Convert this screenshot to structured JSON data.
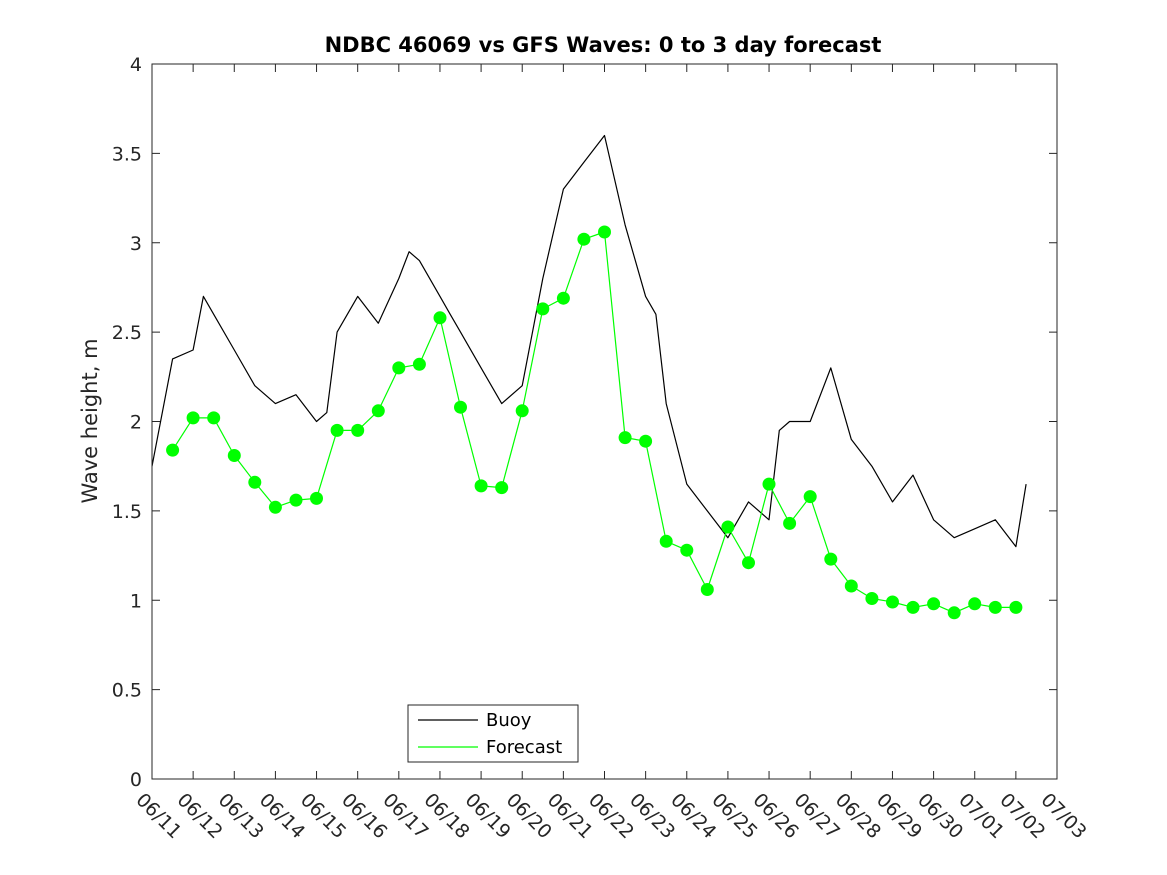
{
  "chart_data": {
    "type": "line",
    "title": "NDBC 46069 vs GFS Waves: 0 to 3 day forecast",
    "xlabel": "",
    "ylabel": "Wave height, m",
    "ylim": [
      0,
      4
    ],
    "yticks": [
      "0",
      "0.5",
      "1",
      "1.5",
      "2",
      "2.5",
      "3",
      "3.5",
      "4"
    ],
    "xlim": [
      "06/11",
      "07/03"
    ],
    "xticks": [
      "06/11",
      "06/12",
      "06/13",
      "06/14",
      "06/15",
      "06/16",
      "06/17",
      "06/18",
      "06/19",
      "06/20",
      "06/21",
      "06/22",
      "06/23",
      "06/24",
      "06/25",
      "06/26",
      "06/27",
      "06/28",
      "06/29",
      "06/30",
      "07/01",
      "07/02",
      "07/03"
    ],
    "grid": false,
    "legend": {
      "placement": "bottom-center",
      "entries": [
        {
          "name": "Buoy",
          "color": "#000000"
        },
        {
          "name": "Forecast",
          "color": "#00ff00"
        }
      ]
    },
    "series": [
      {
        "name": "Buoy",
        "color": "#000000",
        "x": [
          "06/11 00:00",
          "06/11 12:00",
          "06/12 00:00",
          "06/12 06:00",
          "06/12 12:00",
          "06/13 00:00",
          "06/13 12:00",
          "06/14 00:00",
          "06/14 12:00",
          "06/15 00:00",
          "06/15 06:00",
          "06/15 12:00",
          "06/16 00:00",
          "06/16 12:00",
          "06/17 00:00",
          "06/17 06:00",
          "06/17 12:00",
          "06/18 00:00",
          "06/18 06:00",
          "06/18 12:00",
          "06/19 00:00",
          "06/19 12:00",
          "06/20 00:00",
          "06/20 12:00",
          "06/21 00:00",
          "06/21 12:00",
          "06/22 00:00",
          "06/22 12:00",
          "06/23 00:00",
          "06/23 06:00",
          "06/23 12:00",
          "06/24 00:00",
          "06/24 12:00",
          "06/25 00:00",
          "06/25 12:00",
          "06/26 00:00",
          "06/26 06:00",
          "06/26 12:00",
          "06/27 00:00",
          "06/27 12:00",
          "06/28 00:00",
          "06/28 12:00",
          "06/29 00:00",
          "06/29 12:00",
          "06/30 00:00",
          "06/30 12:00",
          "07/01 00:00",
          "07/01 12:00",
          "07/02 00:00",
          "07/02 06:00"
        ],
        "values": [
          1.75,
          2.35,
          2.4,
          2.7,
          2.6,
          2.4,
          2.2,
          2.1,
          2.15,
          2.0,
          2.05,
          2.5,
          2.7,
          2.55,
          2.8,
          2.95,
          2.9,
          2.7,
          2.6,
          2.5,
          2.3,
          2.1,
          2.2,
          2.8,
          3.3,
          3.45,
          3.6,
          3.1,
          2.7,
          2.6,
          2.1,
          1.65,
          1.5,
          1.35,
          1.55,
          1.45,
          1.95,
          2.0,
          2.0,
          2.3,
          1.9,
          1.75,
          1.55,
          1.7,
          1.45,
          1.35,
          1.4,
          1.45,
          1.3,
          1.65
        ]
      },
      {
        "name": "Forecast",
        "color": "#00ff00",
        "x": [
          "06/11 12:00",
          "06/12 00:00",
          "06/12 12:00",
          "06/13 00:00",
          "06/13 12:00",
          "06/14 00:00",
          "06/14 12:00",
          "06/15 00:00",
          "06/15 12:00",
          "06/16 00:00",
          "06/16 12:00",
          "06/17 00:00",
          "06/17 12:00",
          "06/18 00:00",
          "06/18 12:00",
          "06/19 00:00",
          "06/19 12:00",
          "06/20 00:00",
          "06/20 12:00",
          "06/21 00:00",
          "06/21 12:00",
          "06/22 00:00",
          "06/22 12:00",
          "06/23 00:00",
          "06/23 12:00",
          "06/24 00:00",
          "06/24 12:00",
          "06/25 00:00",
          "06/25 12:00",
          "06/26 00:00",
          "06/26 12:00",
          "06/27 00:00",
          "06/27 12:00",
          "06/28 00:00",
          "06/28 12:00",
          "06/29 00:00",
          "06/29 12:00",
          "06/30 00:00",
          "06/30 12:00",
          "07/01 00:00",
          "07/01 12:00",
          "07/02 00:00"
        ],
        "values": [
          1.84,
          2.02,
          2.02,
          1.81,
          1.66,
          1.52,
          1.56,
          1.57,
          1.95,
          1.95,
          2.06,
          2.3,
          2.32,
          2.58,
          2.08,
          1.64,
          1.63,
          2.06,
          2.63,
          2.69,
          3.02,
          3.06,
          1.91,
          1.89,
          1.33,
          1.28,
          1.06,
          1.41,
          1.21,
          1.65,
          1.43,
          1.58,
          1.23,
          1.08,
          1.01,
          0.99,
          0.96,
          0.98,
          0.93,
          0.98,
          0.96,
          0.96
        ]
      }
    ]
  }
}
